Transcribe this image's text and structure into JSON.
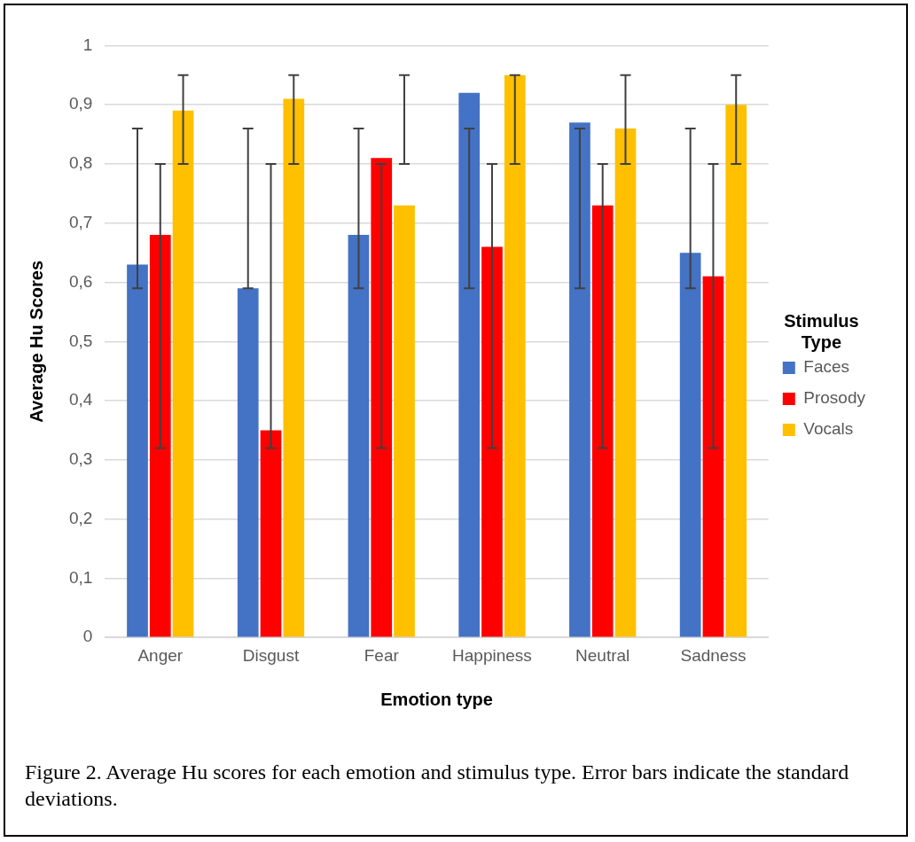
{
  "chart_data": {
    "type": "bar",
    "xlabel": "Emotion type",
    "ylabel": "Average Hu Scores",
    "legend_title": "Stimulus Type",
    "legend": "right",
    "grid": "y",
    "categories": [
      "Anger",
      "Disgust",
      "Fear",
      "Happiness",
      "Neutral",
      "Sadness"
    ],
    "ylim": [
      0,
      1
    ],
    "yticks": [
      0,
      {
        "value": 0.1,
        "label": "0,1"
      },
      {
        "value": 0.2,
        "label": "0,2"
      },
      {
        "value": 0.3,
        "label": "0,3"
      },
      {
        "value": 0.4,
        "label": "0,4"
      },
      {
        "value": 0.5,
        "label": "0,5"
      },
      {
        "value": 0.6,
        "label": "0,6"
      },
      {
        "value": 0.7,
        "label": "0,7"
      },
      {
        "value": 0.8,
        "label": "0,8"
      },
      {
        "value": 0.9,
        "label": "0,9"
      },
      1
    ],
    "series": [
      {
        "name": "Faces",
        "color": "#4472c4",
        "values": [
          0.63,
          0.59,
          0.68,
          0.92,
          0.87,
          0.65
        ],
        "errors": [
          [
            0.59,
            0.86
          ],
          [
            0.59,
            0.86
          ],
          [
            0.59,
            0.86
          ],
          [
            0.59,
            0.86
          ],
          [
            0.59,
            0.86
          ],
          [
            0.59,
            0.86
          ]
        ]
      },
      {
        "name": "Prosody",
        "color": "#ff0000",
        "values": [
          0.68,
          0.35,
          0.81,
          0.66,
          0.73,
          0.61
        ],
        "errors": [
          [
            0.32,
            0.8
          ],
          [
            0.32,
            0.8
          ],
          [
            0.32,
            0.8
          ],
          [
            0.32,
            0.8
          ],
          [
            0.32,
            0.8
          ],
          [
            0.32,
            0.8
          ]
        ]
      },
      {
        "name": "Vocals",
        "color": "#ffc000",
        "values": [
          0.89,
          0.91,
          0.73,
          0.95,
          0.86,
          0.9
        ],
        "errors": [
          [
            0.8,
            0.95
          ],
          [
            0.8,
            0.95
          ],
          [
            0.8,
            0.95
          ],
          [
            0.8,
            0.95
          ],
          [
            0.8,
            0.95
          ],
          [
            0.8,
            0.95
          ]
        ]
      }
    ],
    "annotations": [
      "Figure 2. Average Hu scores for each emotion and stimulus type. Error bars indicate the standard deviations."
    ]
  }
}
